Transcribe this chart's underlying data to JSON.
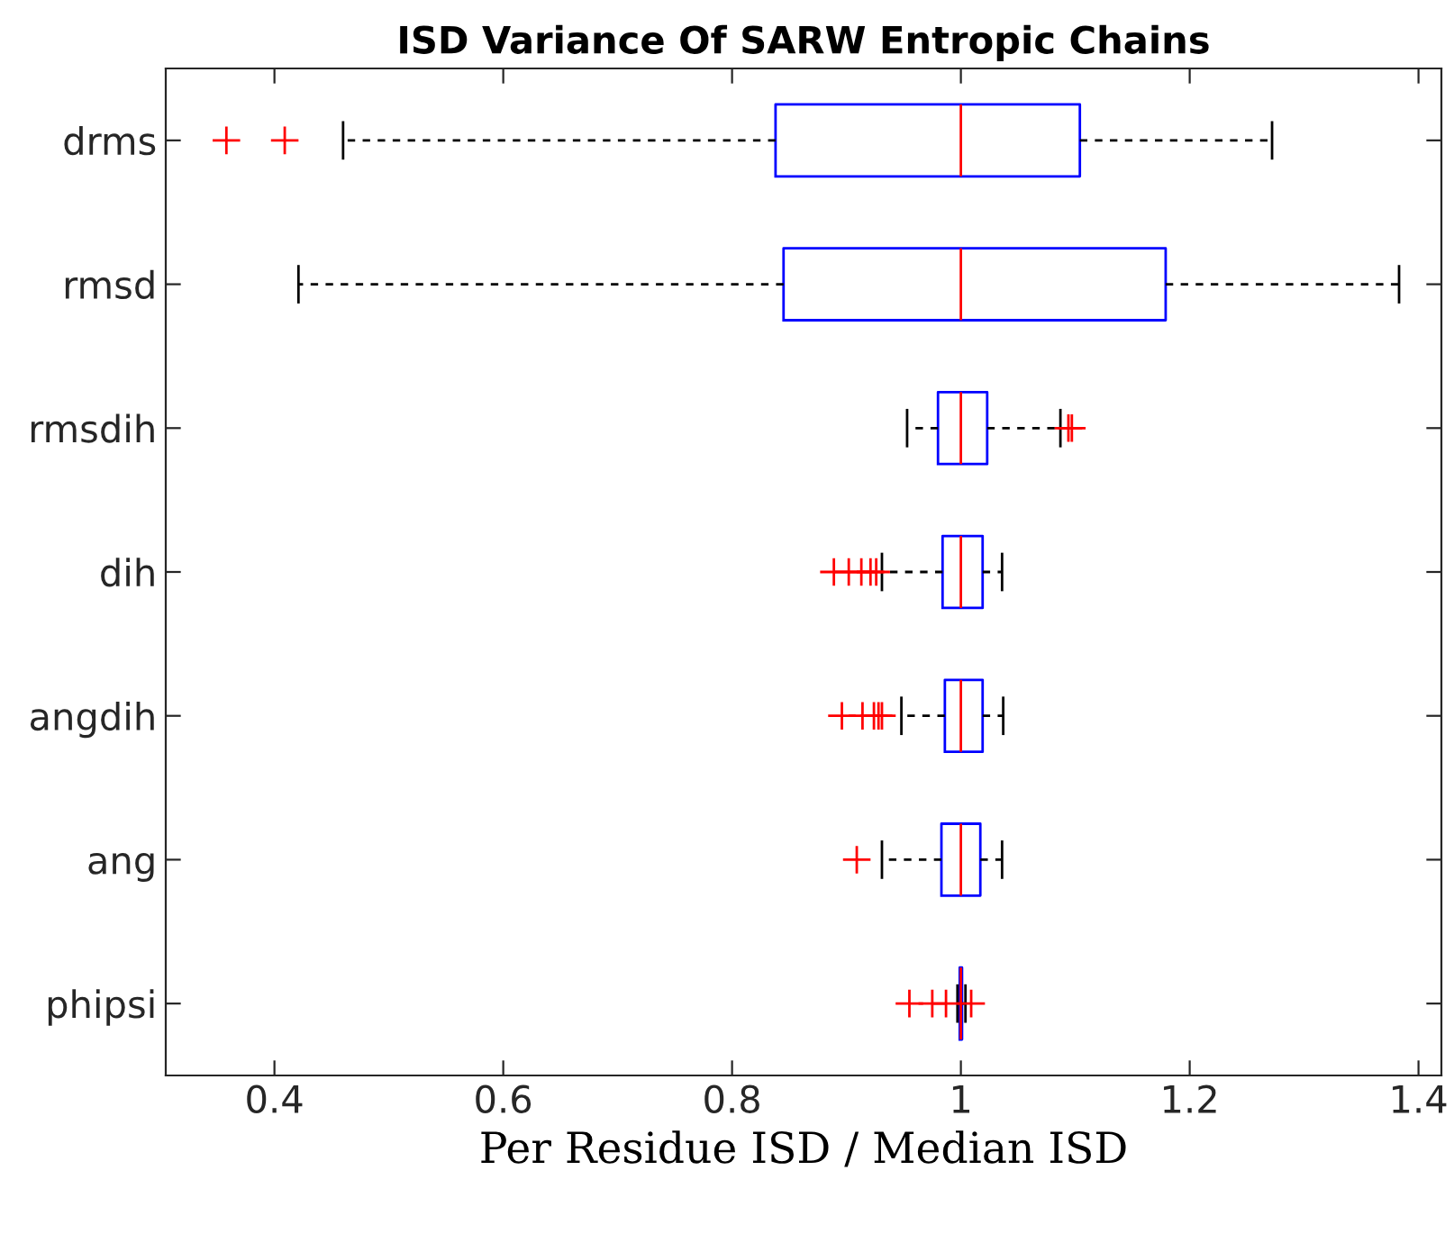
{
  "chart_data": {
    "type": "box",
    "orientation": "horizontal",
    "title": "ISD Variance Of SARW Entropic Chains",
    "xlabel": "Per Residue ISD / Median ISD",
    "categories": [
      "drms",
      "rmsd",
      "rmsdih",
      "dih",
      "angdih",
      "ang",
      "phipsi"
    ],
    "boxes": [
      {
        "low": 0.46,
        "q1": 0.838,
        "median": 1.0,
        "q3": 1.104,
        "high": 1.272,
        "outliers": [
          0.358,
          0.409
        ]
      },
      {
        "low": 0.421,
        "q1": 0.845,
        "median": 1.0,
        "q3": 1.179,
        "high": 1.383
      },
      {
        "low": 0.953,
        "q1": 0.98,
        "median": 1.0,
        "q3": 1.023,
        "high": 1.087,
        "outliers": [
          1.094,
          1.097
        ]
      },
      {
        "low": 0.931,
        "q1": 0.984,
        "median": 1.0,
        "q3": 1.019,
        "high": 1.036,
        "outliers": [
          0.889,
          0.902,
          0.913,
          0.921,
          0.926
        ]
      },
      {
        "low": 0.948,
        "q1": 0.986,
        "median": 1.0,
        "q3": 1.019,
        "high": 1.037,
        "outliers": [
          0.896,
          0.914,
          0.924,
          0.928,
          0.931
        ]
      },
      {
        "low": 0.931,
        "q1": 0.983,
        "median": 1.0,
        "q3": 1.017,
        "high": 1.036,
        "outliers": [
          0.909
        ]
      },
      {
        "low": 0.997,
        "q1": 0.999,
        "median": 1.0,
        "q3": 1.001,
        "high": 1.004,
        "outliers": [
          0.955,
          0.975,
          0.987,
          1.009
        ]
      }
    ],
    "color": "#0000ff",
    "xlim": [
      0.305,
      1.42
    ],
    "xticks": [
      0.4,
      0.6,
      0.8,
      1,
      1.2,
      1.4
    ],
    "grid": false
  }
}
